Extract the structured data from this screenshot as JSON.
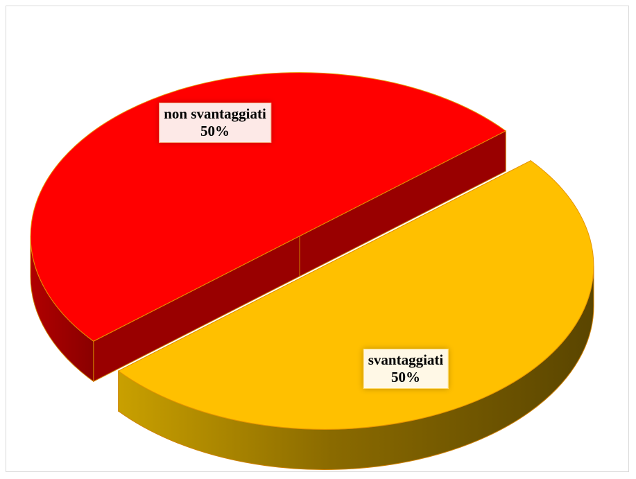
{
  "chart_data": {
    "type": "pie",
    "categories": [
      "non svantaggiati",
      "svantaggiati"
    ],
    "values": [
      50,
      50
    ],
    "value_labels": [
      "50%",
      "50%"
    ],
    "colors": [
      "#ff0000",
      "#ffc000"
    ]
  }
}
